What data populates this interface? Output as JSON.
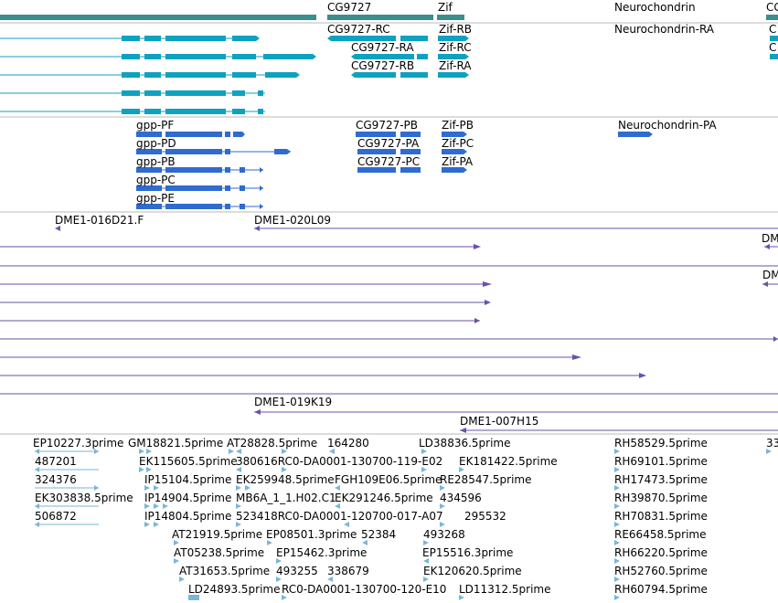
{
  "colors": {
    "gene": "#3a8f8c",
    "transcript": "#0ea2c0",
    "cds": "#2f6bd0",
    "clone": "#6a52a8",
    "est": "#7ab6d8",
    "separator": "#b8b8b8"
  },
  "genes": [
    {
      "label": "CG9727"
    },
    {
      "label": "Zif"
    },
    {
      "label": "Neurochondrin"
    },
    {
      "label": "CG"
    }
  ],
  "transcripts": [
    {
      "label": "CG9727-RC"
    },
    {
      "label": "Zif-RB"
    },
    {
      "label": "Neurochondrin-RA"
    },
    {
      "label": "C"
    },
    {
      "label": "CG9727-RA"
    },
    {
      "label": "Zif-RC"
    },
    {
      "label": "C"
    },
    {
      "label": "CG9727-RB"
    },
    {
      "label": "Zif-RA"
    }
  ],
  "proteins": [
    {
      "label": "gpp-PF"
    },
    {
      "label": "CG9727-PB"
    },
    {
      "label": "Zif-PB"
    },
    {
      "label": "Neurochondrin-PA"
    },
    {
      "label": "gpp-PD"
    },
    {
      "label": "CG9727-PA"
    },
    {
      "label": "Zif-PC"
    },
    {
      "label": "gpp-PB"
    },
    {
      "label": "CG9727-PC"
    },
    {
      "label": "Zif-PA"
    },
    {
      "label": "gpp-PC"
    },
    {
      "label": "gpp-PE"
    }
  ],
  "clones": [
    {
      "label": "DME1-016D21.F"
    },
    {
      "label": "DME1-020L09"
    },
    {
      "label": "DM"
    },
    {
      "label": "DM"
    },
    {
      "label": "DME1-019K19"
    },
    {
      "label": "DME1-007H15"
    }
  ],
  "ests": [
    {
      "label": "EP10227.3prime"
    },
    {
      "label": "GM18821.5prime"
    },
    {
      "label": "AT28828.5prime"
    },
    {
      "label": "164280"
    },
    {
      "label": "LD38836.5prime"
    },
    {
      "label": "RH58529.5prime"
    },
    {
      "label": "33"
    },
    {
      "label": "487201"
    },
    {
      "label": "EK115605.5prime"
    },
    {
      "label": "380616RC0-DA0001-130700-119-E02"
    },
    {
      "label": "EK181422.5prime"
    },
    {
      "label": "RH69101.5prime"
    },
    {
      "label": "324376"
    },
    {
      "label": "IP15104.5prime"
    },
    {
      "label": "EK259948.5prime"
    },
    {
      "label": "FGH109E06.5prime"
    },
    {
      "label": "RE28547.5prime"
    },
    {
      "label": "RH17473.5prime"
    },
    {
      "label": "EK303838.5prime"
    },
    {
      "label": "IP14904.5prime"
    },
    {
      "label": "MB6A_1_1.H02.C1"
    },
    {
      "label": "EK291246.5prime"
    },
    {
      "label": "434596"
    },
    {
      "label": "RH39870.5prime"
    },
    {
      "label": "506872"
    },
    {
      "label": "IP14804.5prime"
    },
    {
      "label": "523418RC0-DA0001-120700-017-A07"
    },
    {
      "label": "295532"
    },
    {
      "label": "RH70831.5prime"
    },
    {
      "label": "AT21919.5prime"
    },
    {
      "label": "EP08501.3prime"
    },
    {
      "label": "52384"
    },
    {
      "label": "493268"
    },
    {
      "label": "RE66458.5prime"
    },
    {
      "label": "AT05238.5prime"
    },
    {
      "label": "EP15462.3prime"
    },
    {
      "label": "EP15516.3prime"
    },
    {
      "label": "RH66220.5prime"
    },
    {
      "label": "AT31653.5prime"
    },
    {
      "label": "493255"
    },
    {
      "label": "338679"
    },
    {
      "label": "EK120620.5prime"
    },
    {
      "label": "RH52760.5prime"
    },
    {
      "label": "LD24893.5prime"
    },
    {
      "label": "RC0-DA0001-130700-120-E10"
    },
    {
      "label": "LD11312.5prime"
    },
    {
      "label": "RH60794.5prime"
    }
  ]
}
